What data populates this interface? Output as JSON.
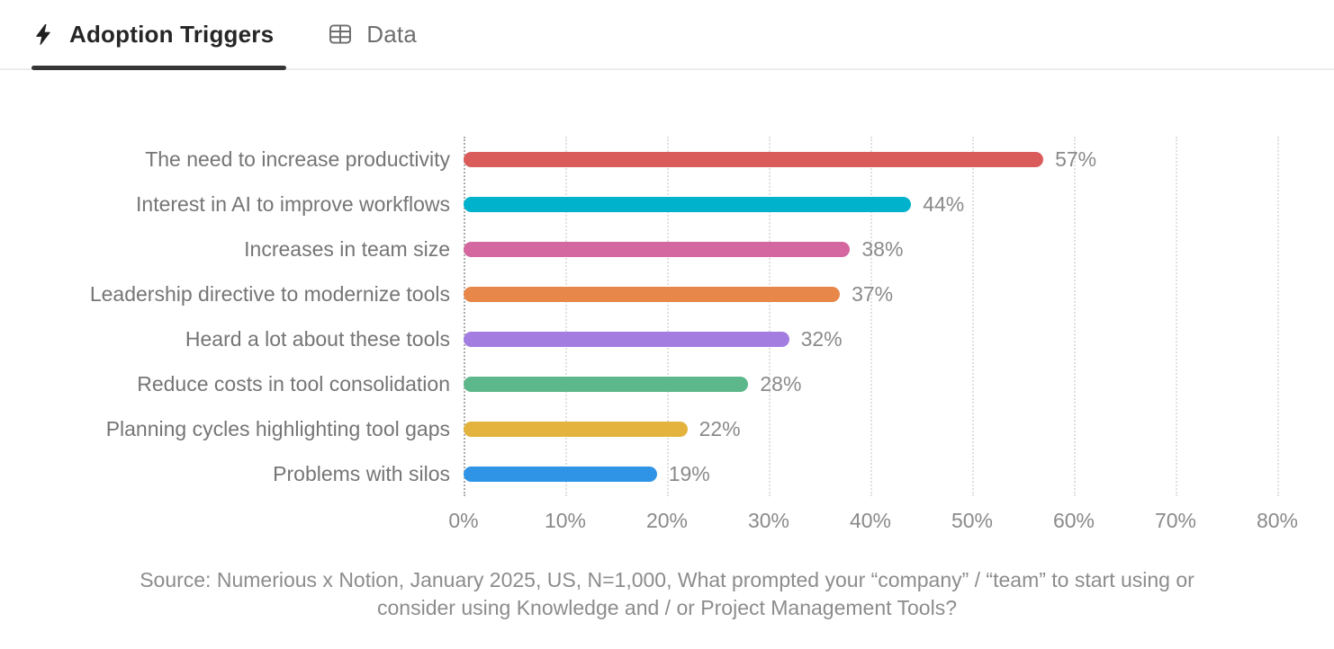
{
  "tabs": [
    {
      "label": "Adoption Triggers",
      "icon": "bolt-icon",
      "active": true
    },
    {
      "label": "Data",
      "icon": "table-icon",
      "active": false
    }
  ],
  "colors": {
    "active_tab_text": "#262626",
    "inactive_tab_text": "#6e6e6e",
    "active_tab_underline": "#363636",
    "header_border": "#ececec",
    "category_label": "#757575",
    "value_label": "#8a8a8a",
    "axis_tick_label": "#8a8a8a",
    "gridline": "#e0e0e0",
    "zero_axis_line": "#ababab",
    "source_text": "#8c8c8c"
  },
  "chart_data": {
    "type": "bar",
    "orientation": "horizontal",
    "title": "Adoption Triggers",
    "categories": [
      "The need to increase productivity",
      "Interest in AI to improve workflows",
      "Increases in team size",
      "Leadership directive to modernize tools",
      "Heard a lot about these tools",
      "Reduce costs in tool consolidation",
      "Planning cycles highlighting tool gaps",
      "Problems with silos"
    ],
    "values": [
      57,
      44,
      38,
      37,
      32,
      28,
      22,
      19
    ],
    "unit": "%",
    "bar_colors": [
      "#D95C5A",
      "#00B2CC",
      "#D4679F",
      "#E8874A",
      "#A37EE0",
      "#5CB88B",
      "#E3B33D",
      "#2F94E5"
    ],
    "xlim": [
      0,
      80
    ],
    "xticks": [
      0,
      10,
      20,
      30,
      40,
      50,
      60,
      70,
      80
    ],
    "xtick_suffix": "%",
    "grid": "dotted-vertical",
    "value_labels_shown": true,
    "legend": "none"
  },
  "source": {
    "lines": [
      "Source: Numerious x Notion, January 2025, US, N=1,000, What prompted your “company” / “team” to start using or",
      "consider using Knowledge and / or Project Management Tools?"
    ]
  }
}
